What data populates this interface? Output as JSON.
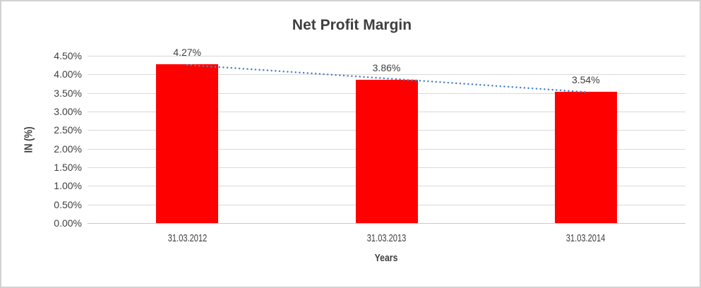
{
  "chart_data": {
    "type": "bar",
    "title": "Net Profit Margin",
    "categories": [
      "31.03.2012",
      "31.03.2013",
      "31.03.2014"
    ],
    "values": [
      4.27,
      3.86,
      3.54
    ],
    "value_labels": [
      "4.27%",
      "3.86%",
      "3.54%"
    ],
    "xlabel": "Years",
    "ylabel": "IN (%)",
    "ylim": [
      0,
      4.5
    ],
    "ytick_step": 0.5,
    "ytick_labels": [
      "0.00%",
      "0.50%",
      "1.00%",
      "1.50%",
      "2.00%",
      "2.50%",
      "3.00%",
      "3.50%",
      "4.00%",
      "4.50%"
    ],
    "grid": true,
    "legend": "none",
    "trendline": {
      "type": "linear",
      "style": "dotted"
    },
    "colors": {
      "bar": "#FF0000",
      "trendline": "#4A86C8",
      "gridline": "#D9D9D9",
      "text": "#404040",
      "title_text": "#3F3F3F",
      "frame_border": "#D2D2D2"
    }
  }
}
